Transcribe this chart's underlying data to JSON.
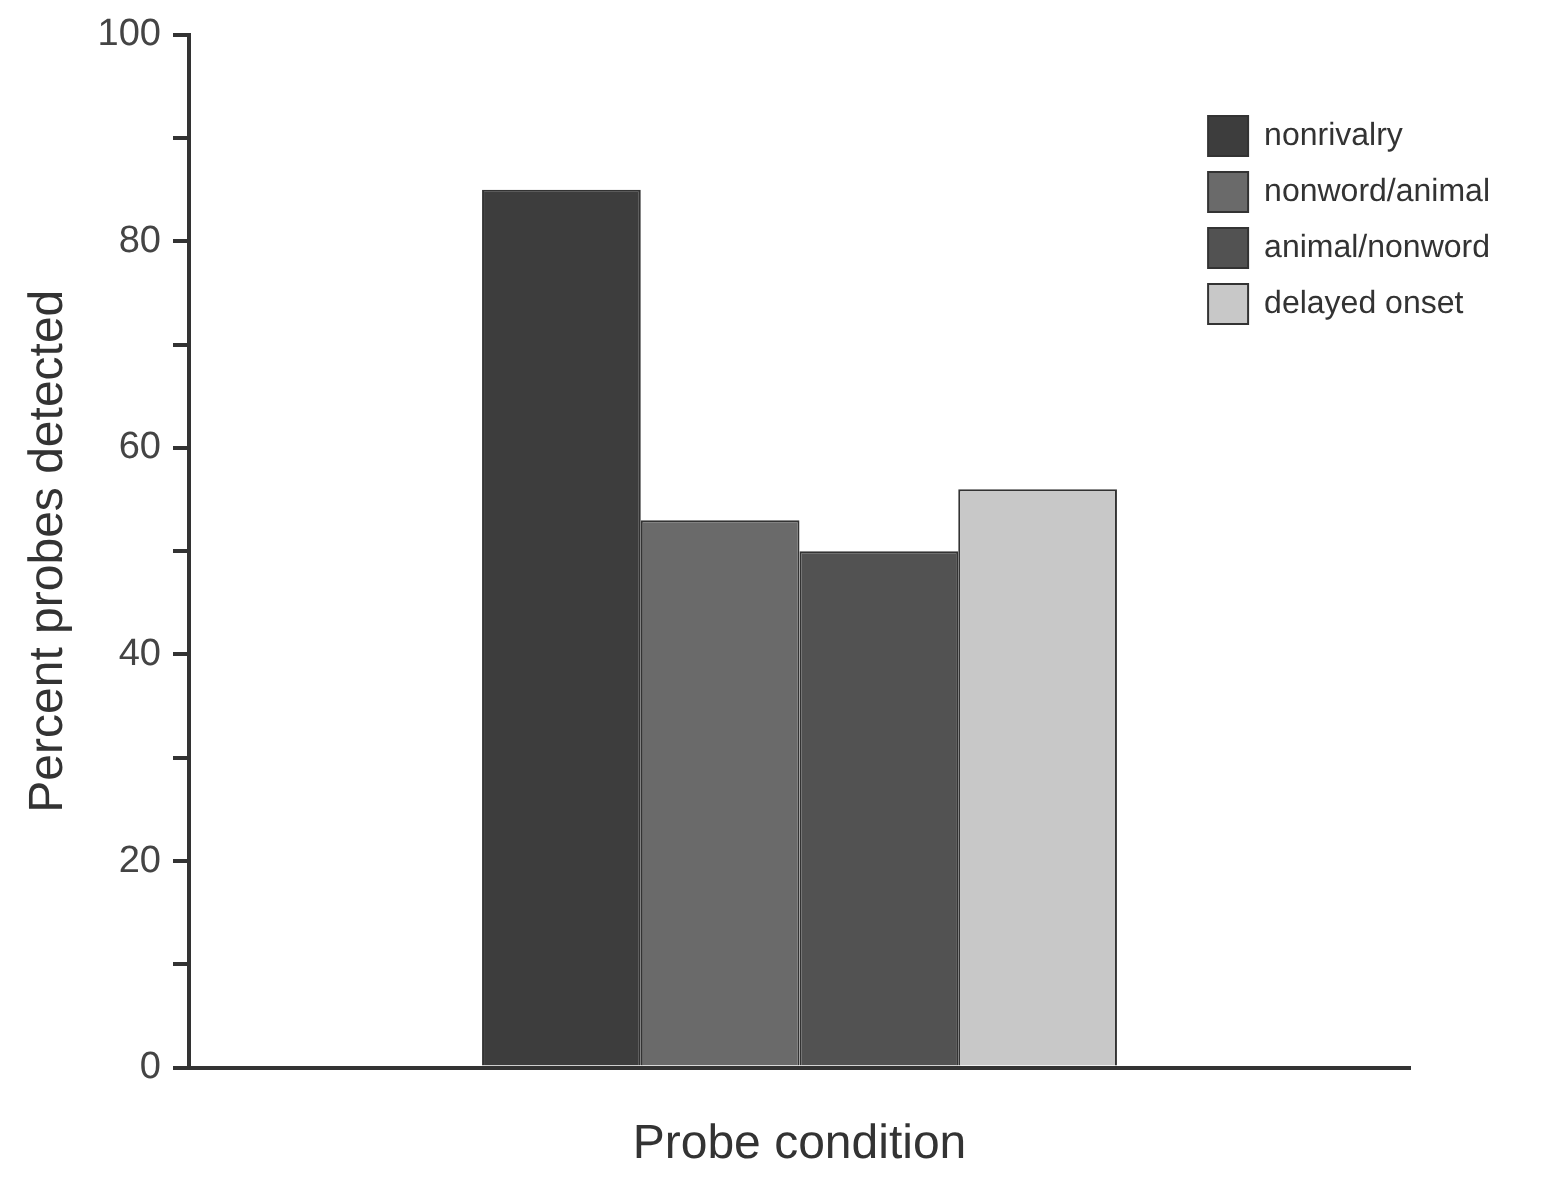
{
  "chart_data": {
    "type": "bar",
    "xlabel": "Probe condition",
    "ylabel": "Percent probes detected",
    "categories": [
      null
    ],
    "series": [
      {
        "name": "nonrivalry",
        "color": "#3d3d3d",
        "values": [
          85
        ]
      },
      {
        "name": "nonword/animal",
        "color": "#6a6a6a",
        "values": [
          53
        ]
      },
      {
        "name": "animal/nonword",
        "color": "#525252",
        "values": [
          50
        ]
      },
      {
        "name": "delayed onset",
        "color": "#c8c8c8",
        "values": [
          56
        ]
      }
    ],
    "ylim": [
      0,
      100
    ],
    "yticks": [
      0,
      {
        "value": 10,
        "label": null
      },
      20,
      {
        "value": 30,
        "label": null
      },
      40,
      {
        "value": 50,
        "label": null
      },
      60,
      {
        "value": 70,
        "label": null
      },
      80,
      {
        "value": 90,
        "label": null
      },
      100
    ],
    "grid": false,
    "legend": "top right"
  }
}
